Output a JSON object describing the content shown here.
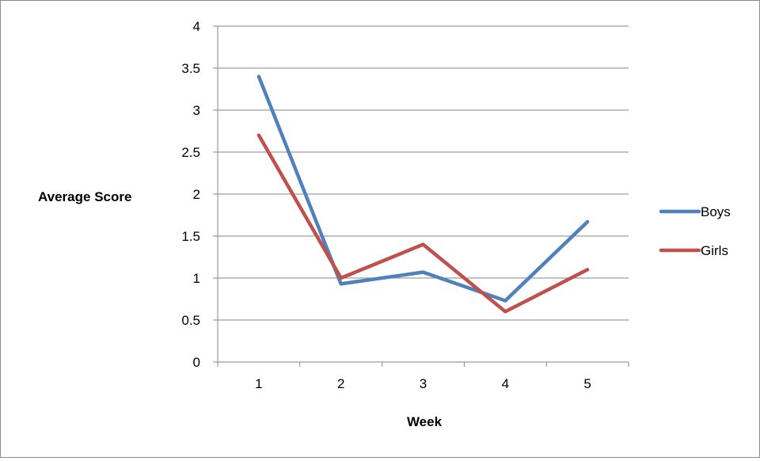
{
  "chart_data": {
    "type": "line",
    "x": [
      1,
      2,
      3,
      4,
      5
    ],
    "x_tick_labels": [
      "1",
      "2",
      "3",
      "4",
      "5"
    ],
    "y_tick_labels": [
      "0",
      "0.5",
      "1",
      "1.5",
      "2",
      "2.5",
      "3",
      "3.5",
      "4"
    ],
    "ylim": [
      0,
      4
    ],
    "grid": "horizontal",
    "legend_position": "right",
    "xlabel": "Week",
    "ylabel": "Average Score",
    "series": [
      {
        "name": "Boys",
        "color": "#4f81bd",
        "values": [
          3.4,
          0.93,
          1.07,
          0.73,
          1.67
        ]
      },
      {
        "name": "Girls",
        "color": "#c0504d",
        "values": [
          2.7,
          1.0,
          1.4,
          0.6,
          1.1
        ]
      }
    ]
  }
}
